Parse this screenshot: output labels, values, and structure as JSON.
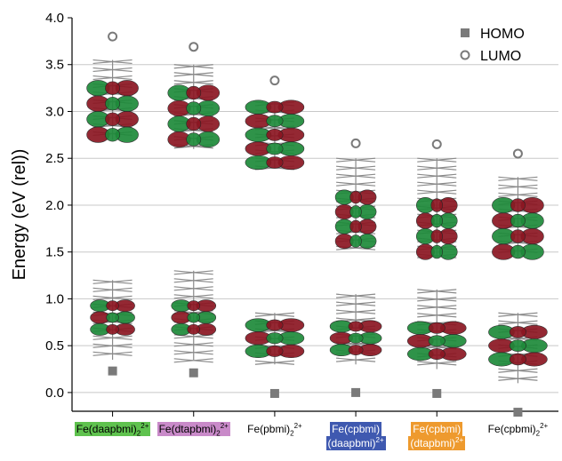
{
  "chart_data": {
    "type": "scatter",
    "ylabel": "Energy (eV (rel))",
    "ylim": [
      -0.2,
      4.0
    ],
    "yticks": [
      "0.0",
      "0.5",
      "1.0",
      "1.5",
      "2.0",
      "2.5",
      "3.0",
      "3.5",
      "4.0"
    ],
    "grid": "horizontal",
    "legend_position": "top-right",
    "categories": [
      {
        "parts": [
          {
            "t": "Fe(daapbmi)"
          },
          {
            "t": "2",
            "s": "sub"
          },
          {
            "t": "2+",
            "s": "sup"
          }
        ],
        "highlight": "#5fc24e"
      },
      {
        "parts": [
          {
            "t": "Fe(dtapbmi)"
          },
          {
            "t": "2",
            "s": "sub"
          },
          {
            "t": "2+",
            "s": "sup"
          }
        ],
        "highlight": "#c98ac9"
      },
      {
        "parts": [
          {
            "t": "Fe(pbmi)"
          },
          {
            "t": "2",
            "s": "sub"
          },
          {
            "t": "2+",
            "s": "sup"
          }
        ],
        "highlight": ""
      },
      {
        "parts": [
          {
            "t": "Fe(cpbmi)"
          }
        ],
        "parts2": [
          {
            "t": "(daapbmi)"
          },
          {
            "t": "2+",
            "s": "sup"
          }
        ],
        "highlight": "#3f59b0",
        "text_color": "#ffffff"
      },
      {
        "parts": [
          {
            "t": "Fe(cpbmi)"
          }
        ],
        "parts2": [
          {
            "t": "(dtapbmi)"
          },
          {
            "t": "2+",
            "s": "sup"
          }
        ],
        "highlight": "#ee9a2e",
        "text_color": "#ffffff"
      },
      {
        "parts": [
          {
            "t": "Fe(cpbmi)"
          },
          {
            "t": "2",
            "s": "sub"
          },
          {
            "t": "2+",
            "s": "sup"
          }
        ],
        "highlight": ""
      }
    ],
    "series": [
      {
        "name": "HOMO",
        "marker": "square",
        "color": "#7a7a7a",
        "values": [
          0.23,
          0.21,
          -0.01,
          0.0,
          -0.01,
          -0.21
        ]
      },
      {
        "name": "LUMO",
        "marker": "circle-open",
        "color": "#7a7a7a",
        "values": [
          3.8,
          3.69,
          3.33,
          2.66,
          2.65,
          2.55
        ]
      }
    ]
  }
}
